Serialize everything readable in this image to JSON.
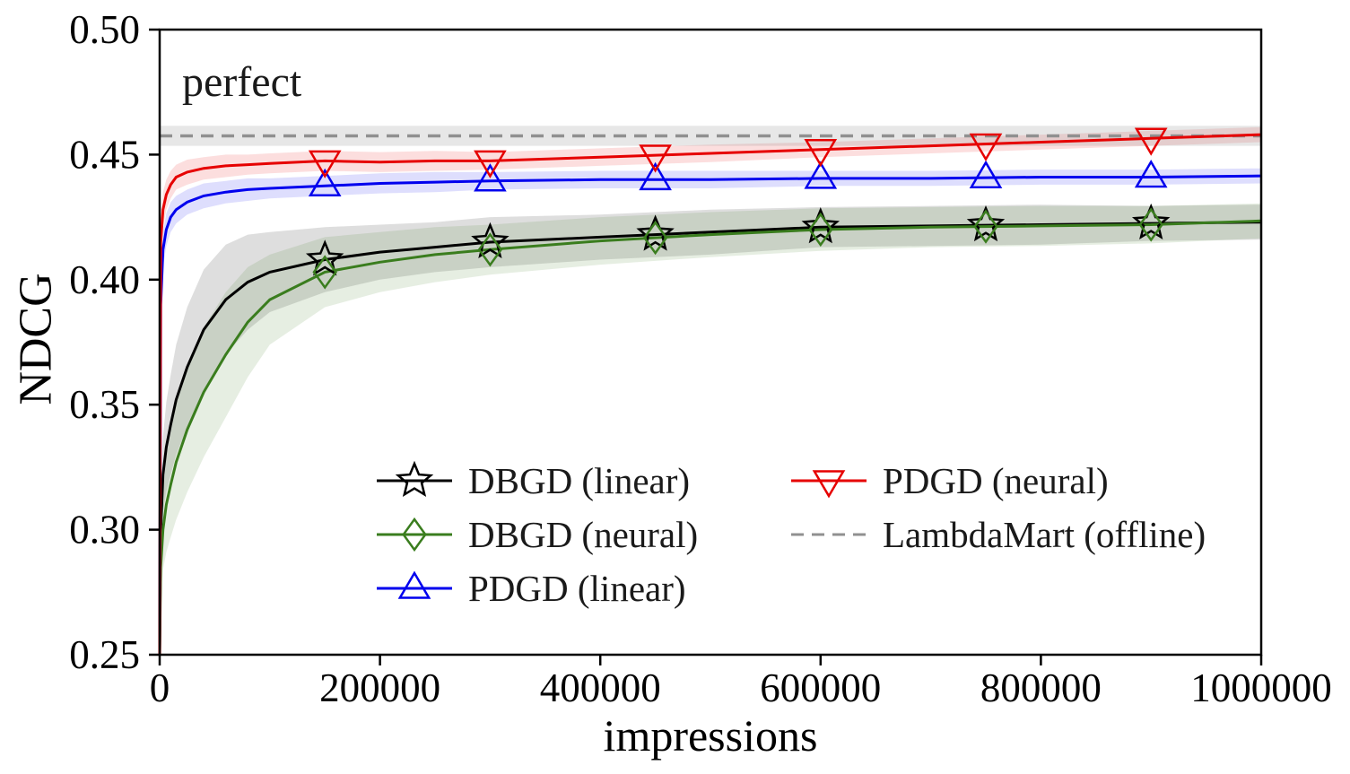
{
  "chart_data": {
    "type": "line",
    "title": "",
    "xlabel": "impressions",
    "ylabel": "NDCG",
    "annotation": {
      "text": "perfect",
      "x": 20000,
      "y": 0.4835
    },
    "xlim": [
      0,
      1000000
    ],
    "ylim": [
      0.25,
      0.5
    ],
    "xticks": [
      0,
      200000,
      400000,
      600000,
      800000,
      1000000
    ],
    "xtick_labels": [
      "0",
      "200000",
      "400000",
      "600000",
      "800000",
      "1000000"
    ],
    "yticks": [
      0.25,
      0.3,
      0.35,
      0.4,
      0.45,
      0.5
    ],
    "ytick_labels": [
      "0.25",
      "0.30",
      "0.35",
      "0.40",
      "0.45",
      "0.50"
    ],
    "grid": false,
    "legend_position": "lower center inside plot, two columns",
    "legend_columns": [
      [
        0,
        1,
        2
      ],
      [
        3,
        4
      ]
    ],
    "marker_x": [
      150000,
      300000,
      450000,
      600000,
      750000,
      900000
    ],
    "x": [
      0,
      1000,
      3000,
      6000,
      10000,
      15000,
      25000,
      40000,
      60000,
      80000,
      100000,
      150000,
      200000,
      250000,
      300000,
      400000,
      500000,
      600000,
      700000,
      800000,
      900000,
      1000000
    ],
    "series": [
      {
        "name": "DBGD (linear)",
        "color": "#000000",
        "marker": "star",
        "dashed": false,
        "y": [
          0.25,
          0.3,
          0.322,
          0.333,
          0.342,
          0.352,
          0.365,
          0.38,
          0.392,
          0.399,
          0.403,
          0.408,
          0.411,
          0.413,
          0.415,
          0.417,
          0.419,
          0.421,
          0.4215,
          0.422,
          0.4225,
          0.423
        ],
        "band": [
          0.0,
          0.01,
          0.015,
          0.018,
          0.02,
          0.022,
          0.024,
          0.024,
          0.022,
          0.019,
          0.016,
          0.013,
          0.011,
          0.01,
          0.01,
          0.009,
          0.009,
          0.008,
          0.008,
          0.008,
          0.007,
          0.007
        ]
      },
      {
        "name": "DBGD (neural)",
        "color": "#3a7d1e",
        "marker": "diamond",
        "dashed": false,
        "y": [
          0.25,
          0.285,
          0.3,
          0.31,
          0.318,
          0.327,
          0.34,
          0.355,
          0.37,
          0.383,
          0.392,
          0.403,
          0.407,
          0.41,
          0.412,
          0.4155,
          0.418,
          0.42,
          0.421,
          0.4215,
          0.422,
          0.4235
        ],
        "band": [
          0.0,
          0.012,
          0.016,
          0.019,
          0.021,
          0.023,
          0.025,
          0.026,
          0.025,
          0.022,
          0.018,
          0.014,
          0.012,
          0.011,
          0.01,
          0.0095,
          0.009,
          0.0085,
          0.008,
          0.008,
          0.0075,
          0.007
        ]
      },
      {
        "name": "PDGD (linear)",
        "color": "#0000ee",
        "marker": "triangle-up",
        "dashed": false,
        "y": [
          0.25,
          0.39,
          0.412,
          0.42,
          0.425,
          0.428,
          0.431,
          0.4335,
          0.435,
          0.436,
          0.4365,
          0.4375,
          0.4385,
          0.439,
          0.4395,
          0.44,
          0.44,
          0.4405,
          0.4405,
          0.441,
          0.441,
          0.4415
        ],
        "band": [
          0.0,
          0.008,
          0.007,
          0.0065,
          0.006,
          0.0055,
          0.005,
          0.005,
          0.0045,
          0.0045,
          0.004,
          0.004,
          0.004,
          0.004,
          0.0035,
          0.0035,
          0.0035,
          0.003,
          0.003,
          0.003,
          0.003,
          0.003
        ]
      },
      {
        "name": "PDGD (neural)",
        "color": "#e60000",
        "marker": "triangle-down",
        "dashed": false,
        "y": [
          0.25,
          0.415,
          0.428,
          0.434,
          0.438,
          0.441,
          0.443,
          0.4445,
          0.4455,
          0.446,
          0.4465,
          0.4475,
          0.447,
          0.4475,
          0.4475,
          0.449,
          0.4505,
          0.452,
          0.4535,
          0.455,
          0.4565,
          0.458
        ],
        "band": [
          0.0,
          0.008,
          0.007,
          0.006,
          0.0055,
          0.005,
          0.005,
          0.0045,
          0.0045,
          0.004,
          0.004,
          0.004,
          0.004,
          0.004,
          0.0035,
          0.0035,
          0.0035,
          0.003,
          0.003,
          0.003,
          0.003,
          0.003
        ]
      },
      {
        "name": "LambdaMart (offline)",
        "color": "#909090",
        "marker": "none",
        "dashed": true,
        "x_own": [
          0,
          1000000
        ],
        "y": [
          0.4575,
          0.4575
        ],
        "band": [
          0.004,
          0.004
        ]
      }
    ]
  }
}
